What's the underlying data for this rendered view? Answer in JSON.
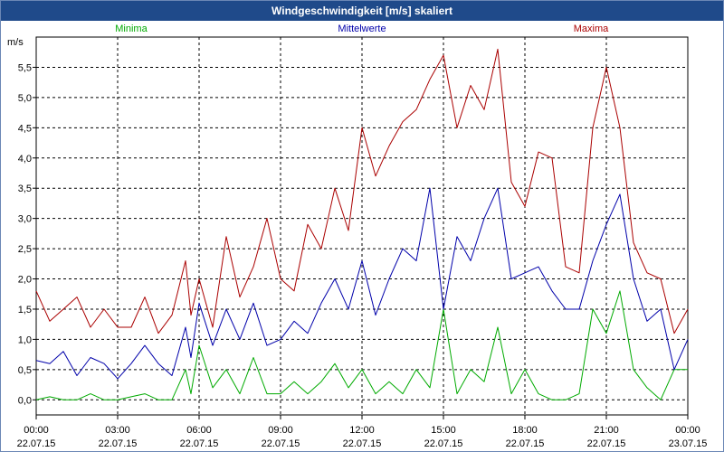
{
  "chart_data": {
    "type": "line",
    "title": "Windgeschwindigkeit [m/s] skaliert",
    "ylabel": "m/s",
    "xlabel": "",
    "ylim": [
      -0.25,
      6.0
    ],
    "y_ticks": [
      0.0,
      0.5,
      1.0,
      1.5,
      2.0,
      2.5,
      3.0,
      3.5,
      4.0,
      4.5,
      5.0,
      5.5
    ],
    "y_tick_labels": [
      "0,0",
      "0,5",
      "1,0",
      "1,5",
      "2,0",
      "2,5",
      "3,0",
      "3,5",
      "4,0",
      "4,5",
      "5,0",
      "5,5"
    ],
    "xlim_hours": [
      0,
      24
    ],
    "x_ticks": [
      {
        "hour": 0,
        "time": "00:00",
        "date": "22.07.15"
      },
      {
        "hour": 3,
        "time": "03:00",
        "date": "22.07.15"
      },
      {
        "hour": 6,
        "time": "06:00",
        "date": "22.07.15"
      },
      {
        "hour": 9,
        "time": "09:00",
        "date": "22.07.15"
      },
      {
        "hour": 12,
        "time": "12:00",
        "date": "22.07.15"
      },
      {
        "hour": 15,
        "time": "15:00",
        "date": "22.07.15"
      },
      {
        "hour": 18,
        "time": "18:00",
        "date": "22.07.15"
      },
      {
        "hour": 21,
        "time": "21:00",
        "date": "22.07.15"
      },
      {
        "hour": 24,
        "time": "00:00",
        "date": "23.07.15"
      }
    ],
    "grid": true,
    "series": [
      {
        "name": "Minima",
        "color": "#00aa00",
        "x": [
          0,
          0.5,
          1,
          1.5,
          2,
          2.5,
          3,
          3.5,
          4,
          4.5,
          5,
          5.5,
          5.7,
          6,
          6.5,
          7,
          7.5,
          8,
          8.5,
          9,
          9.5,
          10,
          10.5,
          11,
          11.5,
          12,
          12.5,
          13,
          13.5,
          14,
          14.5,
          15,
          15.5,
          16,
          16.5,
          17,
          17.5,
          18,
          18.5,
          19,
          19.5,
          20,
          20.5,
          21,
          21.5,
          22,
          22.5,
          23,
          23.5,
          24
        ],
        "values": [
          0,
          0.05,
          0,
          0,
          0.1,
          0,
          0,
          0.05,
          0.1,
          0,
          0,
          0.5,
          0.1,
          0.9,
          0.2,
          0.5,
          0.1,
          0.7,
          0.1,
          0.1,
          0.3,
          0.1,
          0.3,
          0.6,
          0.2,
          0.5,
          0.1,
          0.3,
          0.1,
          0.5,
          0.2,
          1.5,
          0.1,
          0.5,
          0.3,
          1.2,
          0.1,
          0.5,
          0.1,
          0,
          0,
          0.1,
          1.5,
          1.1,
          1.8,
          0.5,
          0.2,
          0,
          0.5,
          0.5
        ]
      },
      {
        "name": "Mittelwerte",
        "color": "#0000aa",
        "x": [
          0,
          0.5,
          1,
          1.5,
          2,
          2.5,
          3,
          3.5,
          4,
          4.5,
          5,
          5.5,
          5.7,
          6,
          6.5,
          7,
          7.5,
          8,
          8.5,
          9,
          9.5,
          10,
          10.5,
          11,
          11.5,
          12,
          12.5,
          13,
          13.5,
          14,
          14.5,
          15,
          15.5,
          16,
          16.5,
          17,
          17.5,
          18,
          18.5,
          19,
          19.5,
          20,
          20.5,
          21,
          21.5,
          22,
          22.5,
          23,
          23.5,
          24
        ],
        "values": [
          0.65,
          0.6,
          0.8,
          0.4,
          0.7,
          0.6,
          0.35,
          0.6,
          0.9,
          0.6,
          0.4,
          1.2,
          0.7,
          1.6,
          0.9,
          1.5,
          1.0,
          1.6,
          0.9,
          1.0,
          1.3,
          1.1,
          1.6,
          2.0,
          1.5,
          2.3,
          1.4,
          2.0,
          2.5,
          2.3,
          3.5,
          1.5,
          2.7,
          2.3,
          3.0,
          3.5,
          2.0,
          2.1,
          2.2,
          1.8,
          1.5,
          1.5,
          2.3,
          2.9,
          3.4,
          2.0,
          1.3,
          1.5,
          0.5,
          1.0
        ]
      },
      {
        "name": "Maxima",
        "color": "#aa0000",
        "x": [
          0,
          0.5,
          1,
          1.5,
          2,
          2.5,
          3,
          3.5,
          4,
          4.5,
          5,
          5.5,
          5.7,
          6,
          6.5,
          7,
          7.5,
          8,
          8.5,
          9,
          9.5,
          10,
          10.5,
          11,
          11.5,
          12,
          12.5,
          13,
          13.5,
          14,
          14.5,
          15,
          15.5,
          16,
          16.5,
          17,
          17.5,
          18,
          18.5,
          19,
          19.5,
          20,
          20.5,
          21,
          21.5,
          22,
          22.5,
          23,
          23.5,
          24
        ],
        "values": [
          1.8,
          1.3,
          1.5,
          1.7,
          1.2,
          1.5,
          1.2,
          1.2,
          1.7,
          1.1,
          1.4,
          2.3,
          1.4,
          2.0,
          1.2,
          2.7,
          1.7,
          2.2,
          3.0,
          2.0,
          1.8,
          2.9,
          2.5,
          3.5,
          2.8,
          4.5,
          3.7,
          4.2,
          4.6,
          4.8,
          5.3,
          5.7,
          4.5,
          5.2,
          4.8,
          5.8,
          3.6,
          3.2,
          4.1,
          4.0,
          2.2,
          2.1,
          4.5,
          5.5,
          4.5,
          2.6,
          2.1,
          2.0,
          1.1,
          1.5
        ]
      }
    ]
  }
}
